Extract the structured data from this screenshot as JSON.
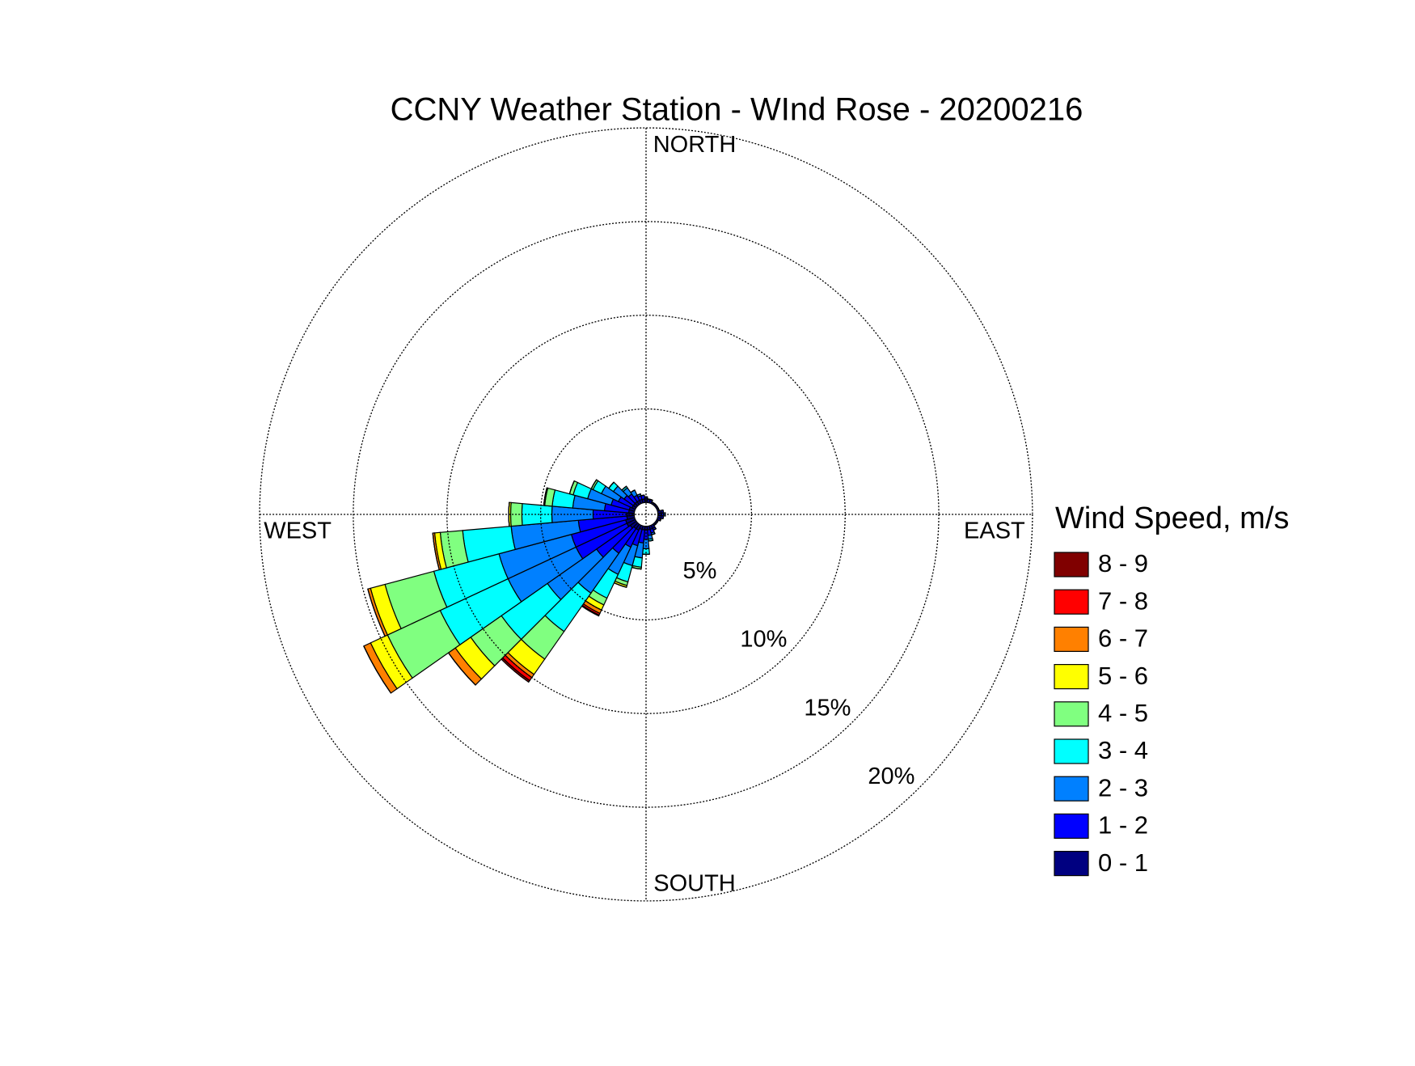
{
  "chart_data": {
    "type": "wind-rose",
    "title": "CCNY Weather Station - WInd Rose - 20200216",
    "compass_labels": [
      "NORTH",
      "EAST",
      "SOUTH",
      "WEST"
    ],
    "legend_title": "Wind Speed, m/s",
    "x": [
      0,
      10,
      20,
      30,
      40,
      50,
      60,
      70,
      80,
      90,
      100,
      110,
      120,
      130,
      140,
      150,
      160,
      170,
      180,
      190,
      200,
      210,
      220,
      230,
      240,
      250,
      260,
      270,
      280,
      290,
      300,
      310,
      320,
      330,
      340,
      350
    ],
    "rlim": [
      0,
      20
    ],
    "rticks": [
      {
        "value": 5,
        "label": "5%"
      },
      {
        "value": 10,
        "label": "10%"
      },
      {
        "value": 15,
        "label": "15%"
      },
      {
        "value": 20,
        "label": "20%"
      }
    ],
    "grid": true,
    "series": [
      {
        "name": "0 - 1",
        "color": "#000080",
        "values": [
          0.2,
          0.2,
          0.2,
          0.1,
          0.1,
          0.1,
          0.1,
          0.1,
          0.2,
          0.2,
          0.2,
          0.2,
          0.1,
          0.1,
          0.1,
          0.2,
          0.2,
          0.2,
          0.2,
          0.2,
          0.2,
          0.3,
          0.3,
          0.4,
          0.5,
          0.5,
          0.4,
          0.4,
          0.3,
          0.3,
          0.2,
          0.2,
          0.2,
          0.2,
          0.2,
          0.2
        ]
      },
      {
        "name": "1 - 2",
        "color": "#0000ff",
        "values": [
          0.1,
          0,
          0,
          0,
          0,
          0,
          0,
          0,
          0.1,
          0.1,
          0.1,
          0,
          0,
          0,
          0,
          0.1,
          0.2,
          0.3,
          0.5,
          0.7,
          0.9,
          1.0,
          1.6,
          2.2,
          3.0,
          3.0,
          2.6,
          1.8,
          1.3,
          1.0,
          0.8,
          0.6,
          0.5,
          0.3,
          0.2,
          0.2
        ]
      },
      {
        "name": "2 - 3",
        "color": "#0080ff",
        "values": [
          0,
          0,
          0,
          0,
          0,
          0,
          0,
          0,
          0,
          0.1,
          0,
          0,
          0,
          0,
          0,
          0,
          0.1,
          0.2,
          0.5,
          0.8,
          1.1,
          1.6,
          2.6,
          3.2,
          4.0,
          4.0,
          3.6,
          2.2,
          1.7,
          1.3,
          1.0,
          0.7,
          0.4,
          0.3,
          0.1,
          0
        ]
      },
      {
        "name": "3 - 4",
        "color": "#00ffff",
        "values": [
          0,
          0,
          0,
          0,
          0,
          0,
          0,
          0,
          0,
          0,
          0,
          0,
          0,
          0,
          0,
          0,
          0,
          0.1,
          0.3,
          0.5,
          0.9,
          1.4,
          2.5,
          3.0,
          4.0,
          3.6,
          2.6,
          1.6,
          1.1,
          0.8,
          0.5,
          0.3,
          0.1,
          0,
          0,
          0
        ]
      },
      {
        "name": "4 - 5",
        "color": "#80ff80",
        "values": [
          0,
          0,
          0,
          0,
          0,
          0,
          0,
          0,
          0,
          0,
          0,
          0,
          0,
          0,
          0,
          0,
          0,
          0,
          0,
          0.1,
          0.2,
          0.4,
          1.8,
          2.0,
          3.1,
          2.7,
          1.2,
          0.6,
          0.4,
          0.2,
          0.1,
          0,
          0,
          0,
          0,
          0
        ]
      },
      {
        "name": "5 - 6",
        "color": "#ffff00",
        "values": [
          0,
          0,
          0,
          0,
          0,
          0,
          0,
          0,
          0,
          0,
          0,
          0,
          0,
          0,
          0,
          0,
          0,
          0,
          0,
          0,
          0.1,
          0.3,
          1.0,
          1.0,
          1.0,
          0.8,
          0.3,
          0.1,
          0.05,
          0,
          0,
          0,
          0,
          0,
          0,
          0
        ]
      },
      {
        "name": "6 - 7",
        "color": "#ff8000",
        "values": [
          0,
          0,
          0,
          0,
          0,
          0,
          0,
          0,
          0,
          0,
          0,
          0,
          0,
          0,
          0,
          0,
          0,
          0,
          0,
          0,
          0,
          0.2,
          0.2,
          0.45,
          0.4,
          0.15,
          0.1,
          0,
          0,
          0,
          0,
          0,
          0,
          0,
          0,
          0
        ]
      },
      {
        "name": "7 - 8",
        "color": "#ff0000",
        "values": [
          0,
          0,
          0,
          0,
          0,
          0,
          0,
          0,
          0,
          0,
          0,
          0,
          0,
          0,
          0,
          0,
          0,
          0,
          0,
          0,
          0,
          0.1,
          0.2,
          0,
          0,
          0,
          0,
          0,
          0,
          0,
          0,
          0,
          0,
          0,
          0,
          0
        ]
      },
      {
        "name": "8 - 9",
        "color": "#800000",
        "values": [
          0,
          0,
          0,
          0,
          0,
          0,
          0,
          0,
          0,
          0,
          0,
          0,
          0,
          0,
          0,
          0,
          0,
          0,
          0,
          0,
          0,
          0.05,
          0.1,
          0,
          0,
          0,
          0,
          0,
          0,
          0,
          0,
          0,
          0,
          0,
          0,
          0
        ]
      }
    ]
  }
}
